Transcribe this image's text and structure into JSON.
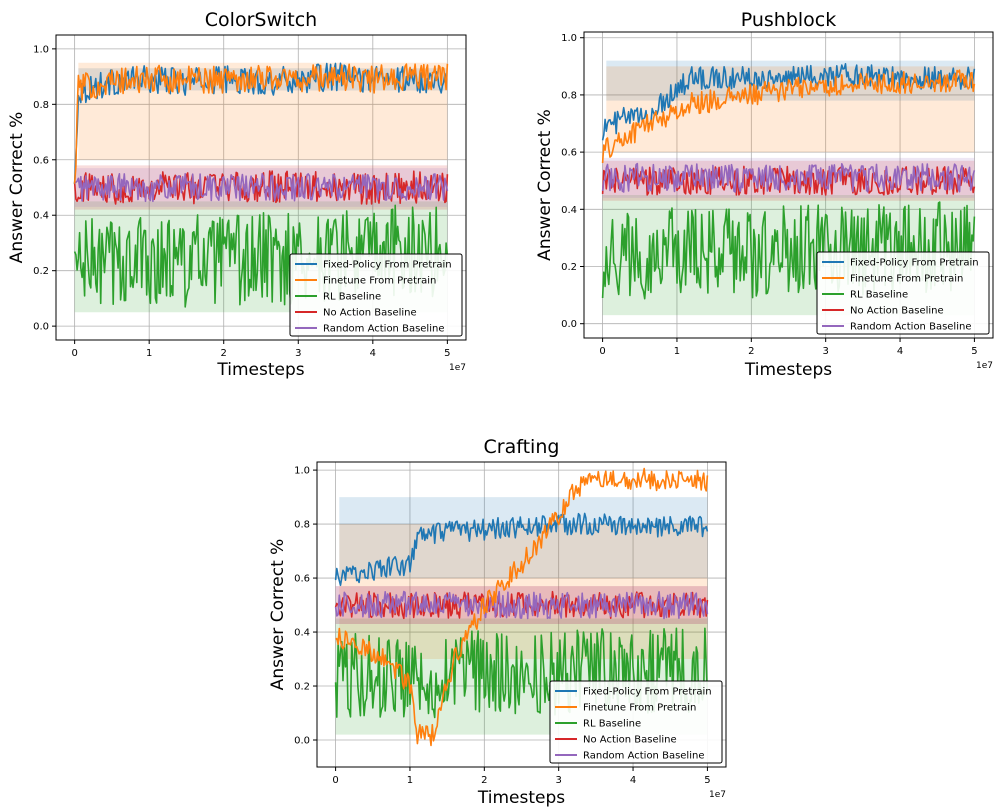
{
  "figure": {
    "background": "#ffffff",
    "legend_entries": [
      {
        "label": "Fixed-Policy From Pretrain",
        "color": "#1f77b4"
      },
      {
        "label": "Finetune From Pretrain",
        "color": "#ff7f0e"
      },
      {
        "label": "RL Baseline",
        "color": "#2ca02c"
      },
      {
        "label": "No Action Baseline",
        "color": "#d62728"
      },
      {
        "label": "Random Action Baseline",
        "color": "#9467bd"
      }
    ]
  },
  "chart_data": [
    {
      "type": "line",
      "title": "ColorSwitch",
      "xlabel": "Timesteps",
      "ylabel": "Answer Correct %",
      "x_offset_label": "1e7",
      "xlim": [
        -0.25,
        5.25
      ],
      "ylim": [
        -0.05,
        1.05
      ],
      "xticks": [
        0,
        1,
        2,
        3,
        4,
        5
      ],
      "xtick_labels": [
        "0",
        "1",
        "2",
        "3",
        "4",
        "5"
      ],
      "yticks": [
        0.0,
        0.2,
        0.4,
        0.6,
        0.8,
        1.0
      ],
      "ytick_labels": [
        "0.0",
        "0.2",
        "0.4",
        "0.6",
        "0.8",
        "1.0"
      ],
      "grid": true,
      "legend_position": "lower right",
      "series": [
        {
          "name": "Fixed-Policy From Pretrain",
          "color": "#1f77b4",
          "x": [
            0,
            0.05,
            0.5,
            1,
            1.5,
            2,
            2.5,
            3,
            3.5,
            4,
            4.5,
            5
          ],
          "y": [
            0.5,
            0.85,
            0.88,
            0.89,
            0.88,
            0.89,
            0.88,
            0.89,
            0.9,
            0.89,
            0.89,
            0.89
          ],
          "noise": 0.05,
          "band": [
            0.85,
            0.93
          ]
        },
        {
          "name": "Finetune From Pretrain",
          "color": "#ff7f0e",
          "x": [
            0,
            0.05,
            0.5,
            1,
            1.5,
            2,
            2.5,
            3,
            3.5,
            4,
            4.5,
            5
          ],
          "y": [
            0.5,
            0.86,
            0.88,
            0.89,
            0.89,
            0.89,
            0.9,
            0.89,
            0.9,
            0.89,
            0.9,
            0.9
          ],
          "noise": 0.05,
          "band": [
            0.6,
            0.95
          ]
        },
        {
          "name": "RL Baseline",
          "color": "#2ca02c",
          "x": [
            0,
            1,
            2,
            3,
            4,
            5
          ],
          "y": [
            0.22,
            0.24,
            0.23,
            0.25,
            0.26,
            0.28
          ],
          "noise": 0.17,
          "band": [
            0.05,
            0.45
          ]
        },
        {
          "name": "No Action Baseline",
          "color": "#d62728",
          "x": [
            0,
            1,
            2,
            3,
            4,
            5
          ],
          "y": [
            0.5,
            0.5,
            0.5,
            0.5,
            0.5,
            0.5
          ],
          "noise": 0.06,
          "band": [
            0.42,
            0.58
          ]
        },
        {
          "name": "Random Action Baseline",
          "color": "#9467bd",
          "x": [
            0,
            1,
            2,
            3,
            4,
            5
          ],
          "y": [
            0.5,
            0.5,
            0.5,
            0.5,
            0.5,
            0.5
          ],
          "noise": 0.05,
          "band": [
            0.43,
            0.57
          ]
        }
      ]
    },
    {
      "type": "line",
      "title": "Pushblock",
      "xlabel": "Timesteps",
      "ylabel": "Answer Correct %",
      "x_offset_label": "1e7",
      "xlim": [
        -0.25,
        5.25
      ],
      "ylim": [
        -0.05,
        1.02
      ],
      "xticks": [
        0,
        1,
        2,
        3,
        4,
        5
      ],
      "xtick_labels": [
        "0",
        "1",
        "2",
        "3",
        "4",
        "5"
      ],
      "yticks": [
        0.0,
        0.2,
        0.4,
        0.6,
        0.8,
        1.0
      ],
      "ytick_labels": [
        "0.0",
        "0.2",
        "0.4",
        "0.6",
        "0.8",
        "1.0"
      ],
      "grid": true,
      "legend_position": "lower right",
      "series": [
        {
          "name": "Fixed-Policy From Pretrain",
          "color": "#1f77b4",
          "x": [
            0,
            0.3,
            0.6,
            0.9,
            1.2,
            1.5,
            2,
            2.5,
            3,
            3.5,
            4,
            4.5,
            5
          ],
          "y": [
            0.68,
            0.72,
            0.72,
            0.8,
            0.86,
            0.86,
            0.86,
            0.86,
            0.87,
            0.87,
            0.86,
            0.86,
            0.86
          ],
          "noise": 0.04,
          "band": [
            0.78,
            0.92
          ]
        },
        {
          "name": "Finetune From Pretrain",
          "color": "#ff7f0e",
          "x": [
            0,
            0.3,
            0.6,
            0.9,
            1.2,
            1.5,
            2,
            2.5,
            3,
            3.5,
            4,
            4.5,
            5
          ],
          "y": [
            0.6,
            0.65,
            0.7,
            0.73,
            0.77,
            0.78,
            0.8,
            0.82,
            0.83,
            0.84,
            0.84,
            0.85,
            0.85
          ],
          "noise": 0.04,
          "band": [
            0.6,
            0.9
          ]
        },
        {
          "name": "RL Baseline",
          "color": "#2ca02c",
          "x": [
            0,
            1,
            2,
            3,
            4,
            5
          ],
          "y": [
            0.24,
            0.25,
            0.25,
            0.26,
            0.26,
            0.27
          ],
          "noise": 0.16,
          "band": [
            0.03,
            0.45
          ]
        },
        {
          "name": "No Action Baseline",
          "color": "#d62728",
          "x": [
            0,
            1,
            2,
            3,
            4,
            5
          ],
          "y": [
            0.5,
            0.5,
            0.5,
            0.5,
            0.5,
            0.5
          ],
          "noise": 0.05,
          "band": [
            0.43,
            0.57
          ]
        },
        {
          "name": "Random Action Baseline",
          "color": "#9467bd",
          "x": [
            0,
            1,
            2,
            3,
            4,
            5
          ],
          "y": [
            0.51,
            0.51,
            0.51,
            0.51,
            0.51,
            0.51
          ],
          "noise": 0.05,
          "band": [
            0.44,
            0.58
          ]
        }
      ]
    },
    {
      "type": "line",
      "title": "Crafting",
      "xlabel": "Timesteps",
      "ylabel": "Answer Correct %",
      "x_offset_label": "1e7",
      "xlim": [
        -0.25,
        5.25
      ],
      "ylim": [
        -0.1,
        1.03
      ],
      "xticks": [
        0,
        1,
        2,
        3,
        4,
        5
      ],
      "xtick_labels": [
        "0",
        "1",
        "2",
        "3",
        "4",
        "5"
      ],
      "yticks": [
        0.0,
        0.2,
        0.4,
        0.6,
        0.8,
        1.0
      ],
      "ytick_labels": [
        "0.0",
        "0.2",
        "0.4",
        "0.6",
        "0.8",
        "1.0"
      ],
      "grid": true,
      "legend_position": "lower right",
      "series": [
        {
          "name": "Fixed-Policy From Pretrain",
          "color": "#1f77b4",
          "x": [
            0,
            0.5,
            1,
            1.1,
            1.5,
            2,
            2.5,
            3,
            3.5,
            4,
            4.5,
            5
          ],
          "y": [
            0.6,
            0.63,
            0.65,
            0.75,
            0.77,
            0.78,
            0.79,
            0.8,
            0.8,
            0.79,
            0.79,
            0.79
          ],
          "noise": 0.04,
          "band": [
            0.6,
            0.9
          ]
        },
        {
          "name": "Finetune From Pretrain",
          "color": "#ff7f0e",
          "x": [
            0,
            0.3,
            0.7,
            1,
            1.1,
            1.3,
            1.6,
            2,
            2.4,
            2.8,
            3.1,
            3.3,
            3.6,
            4,
            4.5,
            5
          ],
          "y": [
            0.38,
            0.35,
            0.3,
            0.2,
            0.02,
            0.02,
            0.3,
            0.5,
            0.62,
            0.75,
            0.88,
            0.95,
            0.96,
            0.97,
            0.96,
            0.96
          ],
          "noise": 0.04,
          "band": [
            0.3,
            0.8
          ]
        },
        {
          "name": "RL Baseline",
          "color": "#2ca02c",
          "x": [
            0,
            1,
            2,
            3,
            4,
            5
          ],
          "y": [
            0.24,
            0.24,
            0.25,
            0.25,
            0.26,
            0.26
          ],
          "noise": 0.16,
          "band": [
            0.02,
            0.45
          ]
        },
        {
          "name": "No Action Baseline",
          "color": "#d62728",
          "x": [
            0,
            1,
            2,
            3,
            4,
            5
          ],
          "y": [
            0.5,
            0.5,
            0.5,
            0.5,
            0.5,
            0.5
          ],
          "noise": 0.05,
          "band": [
            0.43,
            0.57
          ]
        },
        {
          "name": "Random Action Baseline",
          "color": "#9467bd",
          "x": [
            0,
            1,
            2,
            3,
            4,
            5
          ],
          "y": [
            0.5,
            0.5,
            0.5,
            0.5,
            0.5,
            0.5
          ],
          "noise": 0.05,
          "band": [
            0.43,
            0.57
          ]
        }
      ]
    }
  ]
}
